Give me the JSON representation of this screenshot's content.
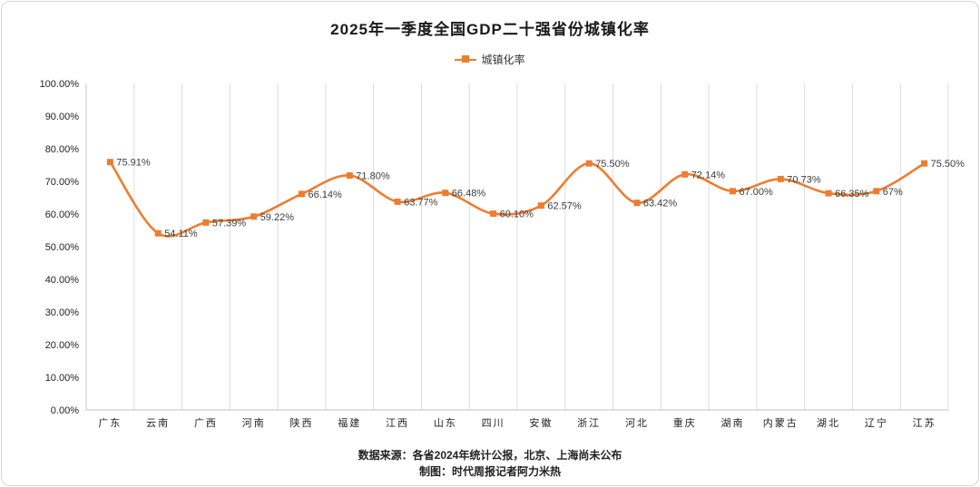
{
  "title": "2025年一季度全国GDP二十强省份城镇化率",
  "legend": {
    "label": "城镇化率",
    "color": "#ED7D31"
  },
  "footer": {
    "line1": "数据来源：各省2024年统计公报，北京、上海尚未公布",
    "line2": "制图：时代周报记者阿力米热"
  },
  "chart_data": {
    "type": "line",
    "title": "2025年一季度全国GDP二十强省份城镇化率",
    "series_name": "城镇化率",
    "categories": [
      "广东",
      "云南",
      "广西",
      "河南",
      "陕西",
      "福建",
      "江西",
      "山东",
      "四川",
      "安徽",
      "浙江",
      "河北",
      "重庆",
      "湖南",
      "内蒙古",
      "湖北",
      "辽宁",
      "江苏"
    ],
    "values": [
      75.91,
      54.11,
      57.39,
      59.22,
      66.14,
      71.8,
      63.77,
      66.48,
      60.1,
      62.57,
      75.5,
      63.42,
      72.14,
      67.0,
      70.73,
      66.35,
      67,
      75.5
    ],
    "labels": [
      "75.91%",
      "54.11%",
      "57.39%",
      "59.22%",
      "66.14%",
      "71.80%",
      "63.77%",
      "66.48%",
      "60.10%",
      "62.57%",
      "75.50%",
      "63.42%",
      "72.14%",
      "67.00%",
      "70.73%",
      "66.35%",
      "67%",
      "75.50%"
    ],
    "xlabel": "",
    "ylabel": "",
    "ylim": [
      0,
      100
    ],
    "ytick_step": 10,
    "ytick_labels": [
      "0.00%",
      "10.00%",
      "20.00%",
      "30.00%",
      "40.00%",
      "50.00%",
      "60.00%",
      "70.00%",
      "80.00%",
      "90.00%",
      "100.00%"
    ],
    "grid": "vertical",
    "legend_position": "top",
    "line_color": "#ED7D31",
    "marker": "square"
  }
}
